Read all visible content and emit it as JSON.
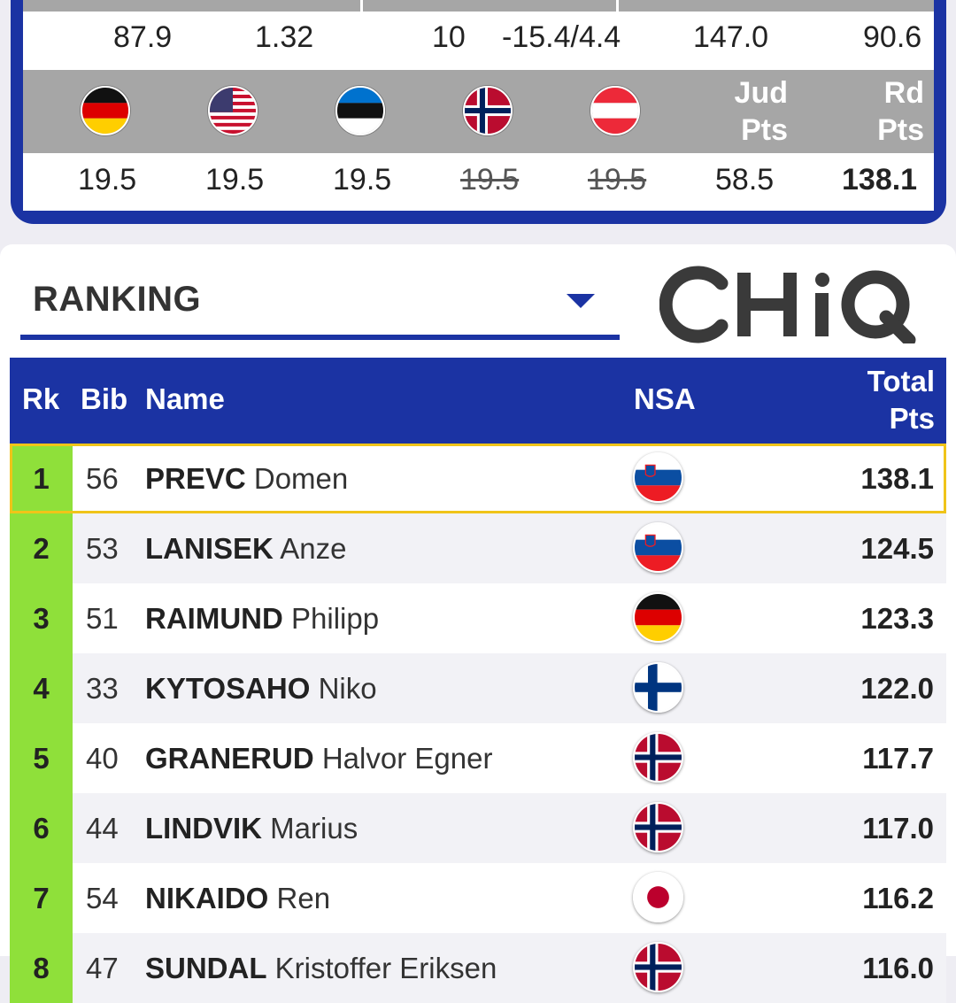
{
  "jump_detail": {
    "values": [
      "87.9",
      "1.32",
      "10",
      "-15.4/4.4",
      "147.0",
      "90.6"
    ],
    "judge_flags": [
      {
        "country": "Germany",
        "icon": "germany-flag-icon"
      },
      {
        "country": "USA",
        "icon": "usa-flag-icon"
      },
      {
        "country": "Estonia",
        "icon": "estonia-flag-icon"
      },
      {
        "country": "Norway",
        "icon": "norway-flag-icon"
      },
      {
        "country": "Austria",
        "icon": "austria-flag-icon"
      }
    ],
    "jud_pts_line1": "Jud",
    "jud_pts_line2": "Pts",
    "rd_pts_line1": "Rd",
    "rd_pts_line2": "Pts",
    "judge_scores": [
      "19.5",
      "19.5",
      "19.5",
      "19.5",
      "19.5"
    ],
    "judge_scores_struck": [
      false,
      false,
      false,
      true,
      true
    ],
    "jud_pts": "58.5",
    "rd_pts": "138.1"
  },
  "ranking": {
    "select_label": "RANKING",
    "sponsor": "CHiQ",
    "headers": {
      "rk": "Rk",
      "bib": "Bib",
      "name": "Name",
      "nsa": "NSA",
      "total_line1": "Total",
      "total_line2": "Pts"
    },
    "rows": [
      {
        "rank": "1",
        "bib": "56",
        "last": "PREVC",
        "first": "Domen",
        "nsa": "slovenia-flag-icon",
        "pts": "138.1"
      },
      {
        "rank": "2",
        "bib": "53",
        "last": "LANISEK",
        "first": "Anze",
        "nsa": "slovenia-flag-icon",
        "pts": "124.5"
      },
      {
        "rank": "3",
        "bib": "51",
        "last": "RAIMUND",
        "first": "Philipp",
        "nsa": "germany-flag-icon",
        "pts": "123.3"
      },
      {
        "rank": "4",
        "bib": "33",
        "last": "KYTOSAHO",
        "first": "Niko",
        "nsa": "finland-flag-icon",
        "pts": "122.0"
      },
      {
        "rank": "5",
        "bib": "40",
        "last": "GRANERUD",
        "first": "Halvor Egner",
        "nsa": "norway-flag-icon",
        "pts": "117.7"
      },
      {
        "rank": "6",
        "bib": "44",
        "last": "LINDVIK",
        "first": "Marius",
        "nsa": "norway-flag-icon",
        "pts": "117.0"
      },
      {
        "rank": "7",
        "bib": "54",
        "last": "NIKAIDO",
        "first": "Ren",
        "nsa": "japan-flag-icon",
        "pts": "116.2"
      },
      {
        "rank": "8",
        "bib": "47",
        "last": "SUNDAL",
        "first": "Kristoffer Eriksen",
        "nsa": "norway-flag-icon",
        "pts": "116.0"
      }
    ]
  }
}
